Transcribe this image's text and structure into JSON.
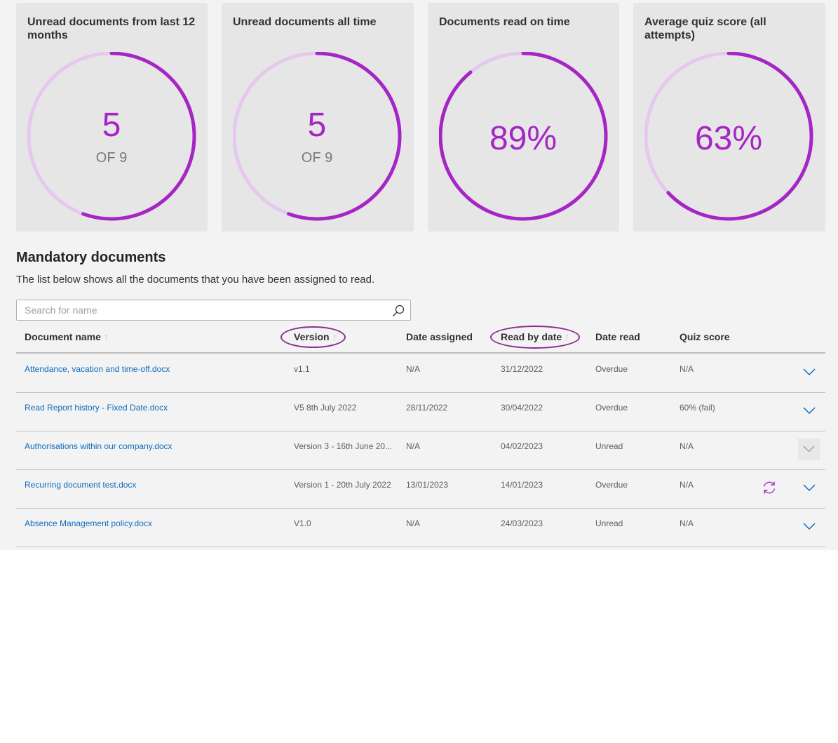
{
  "colors": {
    "accent": "#a626c5",
    "track": "#e6c8ef",
    "link": "#0f6cbd",
    "highlight": "#8a2d8f"
  },
  "cards": [
    {
      "title": "Unread documents from last 12 months",
      "value": "5",
      "of_label": "OF 9",
      "progress": 0.5556
    },
    {
      "title": "Unread documents all time",
      "value": "5",
      "of_label": "OF 9",
      "progress": 0.5556
    },
    {
      "title": "Documents read on time",
      "value": "89%",
      "progress": 0.89
    },
    {
      "title": "Average quiz score (all attempts)",
      "value": "63%",
      "progress": 0.63
    }
  ],
  "section": {
    "title": "Mandatory documents",
    "description": "The list below shows all the documents that you have been assigned to read."
  },
  "search": {
    "placeholder": "Search for name",
    "value": "",
    "icon": "search-icon"
  },
  "table": {
    "headers": {
      "name": "Document name",
      "version": "Version",
      "date_assigned": "Date assigned",
      "read_by": "Read by date",
      "date_read": "Date read",
      "quiz": "Quiz score"
    },
    "sort_arrow": "↑",
    "rows": [
      {
        "name": "Attendance, vacation and time-off.docx",
        "version": "v1.1",
        "date_assigned": "N/A",
        "read_by": "31/12/2022",
        "date_read": "Overdue",
        "quiz": "N/A"
      },
      {
        "name": "Read Report history - Fixed Date.docx",
        "version": "V5 8th July 2022",
        "date_assigned": "28/11/2022",
        "read_by": "30/04/2022",
        "date_read": "Overdue",
        "quiz": "60% (fail)"
      },
      {
        "name": "Authorisations within our company.docx",
        "version": "Version 3 - 16th June 20...",
        "date_assigned": "N/A",
        "read_by": "04/02/2023",
        "date_read": "Unread",
        "quiz": "N/A"
      },
      {
        "name": "Recurring document test.docx",
        "version": "Version 1 - 20th July 2022",
        "date_assigned": "13/01/2023",
        "read_by": "14/01/2023",
        "date_read": "Overdue",
        "quiz": "N/A"
      },
      {
        "name": "Absence Management policy.docx",
        "version": "V1.0",
        "date_assigned": "N/A",
        "read_by": "24/03/2023",
        "date_read": "Unread",
        "quiz": "N/A"
      }
    ]
  }
}
